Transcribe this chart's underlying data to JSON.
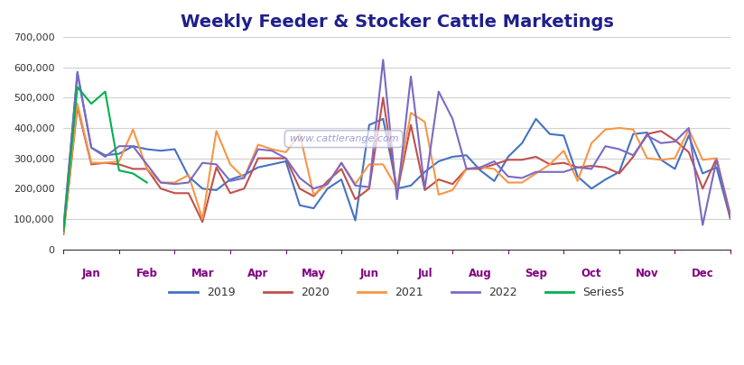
{
  "title": "Weekly Feeder & Stocker Cattle Marketings",
  "title_color": "#1F1F8C",
  "background_color": "#FFFFFF",
  "watermark": "www.cattlerange.com",
  "ylim": [
    0,
    700000
  ],
  "yticks": [
    0,
    100000,
    200000,
    300000,
    400000,
    500000,
    600000,
    700000
  ],
  "ytick_labels": [
    "0",
    "100,000",
    "200,000",
    "300,000",
    "400,000",
    "500,000",
    "600,000",
    "700,000"
  ],
  "months": [
    "Jan",
    "Feb",
    "Mar",
    "Apr",
    "May",
    "Jun",
    "Jul",
    "Aug",
    "Sep",
    "Oct",
    "Nov",
    "Dec"
  ],
  "series": {
    "2019": {
      "color": "#4472C4",
      "data": [
        60000,
        585000,
        335000,
        310000,
        315000,
        340000,
        330000,
        325000,
        330000,
        240000,
        200000,
        195000,
        230000,
        245000,
        270000,
        280000,
        290000,
        145000,
        135000,
        200000,
        230000,
        95000,
        410000,
        430000,
        200000,
        210000,
        255000,
        290000,
        305000,
        310000,
        260000,
        225000,
        305000,
        350000,
        430000,
        380000,
        375000,
        240000,
        200000,
        230000,
        255000,
        380000,
        385000,
        295000,
        265000,
        375000,
        250000,
        270000,
        100000
      ]
    },
    "2020": {
      "color": "#C0504D",
      "data": [
        50000,
        470000,
        280000,
        285000,
        280000,
        265000,
        265000,
        200000,
        185000,
        185000,
        90000,
        270000,
        185000,
        200000,
        300000,
        300000,
        300000,
        200000,
        175000,
        225000,
        265000,
        165000,
        200000,
        500000,
        185000,
        410000,
        195000,
        230000,
        215000,
        265000,
        265000,
        280000,
        295000,
        295000,
        305000,
        280000,
        285000,
        270000,
        275000,
        270000,
        250000,
        305000,
        380000,
        390000,
        360000,
        320000,
        200000,
        300000,
        100000
      ]
    },
    "2021": {
      "color": "#F79646",
      "data": [
        55000,
        480000,
        285000,
        285000,
        290000,
        395000,
        265000,
        220000,
        220000,
        245000,
        100000,
        390000,
        280000,
        235000,
        345000,
        330000,
        320000,
        380000,
        180000,
        215000,
        285000,
        215000,
        280000,
        280000,
        200000,
        450000,
        420000,
        180000,
        195000,
        265000,
        270000,
        265000,
        220000,
        220000,
        250000,
        280000,
        325000,
        225000,
        350000,
        395000,
        400000,
        395000,
        300000,
        295000,
        300000,
        395000,
        295000,
        300000,
        115000
      ]
    },
    "2022": {
      "color": "#7B69C4",
      "data": [
        75000,
        580000,
        335000,
        305000,
        340000,
        340000,
        280000,
        220000,
        215000,
        220000,
        285000,
        280000,
        225000,
        235000,
        330000,
        325000,
        300000,
        235000,
        200000,
        215000,
        285000,
        210000,
        205000,
        625000,
        165000,
        570000,
        200000,
        520000,
        430000,
        265000,
        270000,
        290000,
        240000,
        235000,
        255000,
        255000,
        255000,
        270000,
        265000,
        340000,
        330000,
        310000,
        375000,
        350000,
        355000,
        400000,
        80000,
        295000,
        110000
      ]
    },
    "Series5": {
      "color": "#00B050",
      "data": [
        60000,
        535000,
        480000,
        520000,
        260000,
        250000,
        220000,
        null,
        null,
        null,
        null,
        null,
        null,
        null,
        null,
        null,
        null,
        null,
        null,
        null,
        null,
        null,
        null,
        null,
        null,
        null,
        null,
        null,
        null,
        null,
        null,
        null,
        null,
        null,
        null,
        null,
        null,
        null,
        null,
        null,
        null,
        null,
        null,
        null,
        null,
        null,
        null,
        null,
        null
      ]
    }
  },
  "legend": {
    "entries": [
      "2019",
      "2020",
      "2021",
      "2022",
      "Series5"
    ],
    "colors": [
      "#4472C4",
      "#C0504D",
      "#F79646",
      "#7B69C4",
      "#00B050"
    ],
    "loc": "lower center",
    "ncol": 5
  },
  "grid_color": "#D0D0D0",
  "tick_color": "#800080",
  "axis_label_color": "#800080"
}
